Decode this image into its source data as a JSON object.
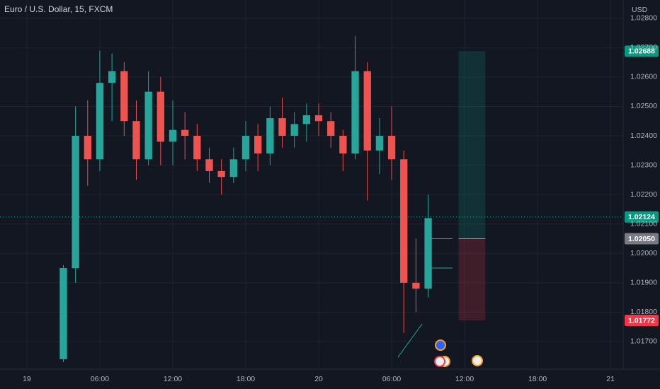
{
  "chart_data": {
    "type": "candlestick",
    "title": "Euro / U.S. Dollar, 15, FXCM",
    "y_unit": "USD",
    "x": [
      3,
      4,
      5,
      6,
      7,
      8,
      9,
      10,
      11,
      12,
      13,
      14,
      15,
      16,
      17,
      18,
      19,
      20,
      21,
      22,
      23,
      24,
      25,
      26,
      27,
      28,
      29,
      30,
      31,
      32,
      33
    ],
    "open": [
      1.0164,
      1.0195,
      1.024,
      1.0232,
      1.0258,
      1.0262,
      1.0245,
      1.0232,
      1.0255,
      1.0238,
      1.0242,
      1.024,
      1.0232,
      1.0228,
      1.0226,
      1.0232,
      1.024,
      1.0234,
      1.0246,
      1.024,
      1.0244,
      1.0247,
      1.0245,
      1.024,
      1.0234,
      1.0262,
      1.0235,
      1.024,
      1.0232,
      1.019,
      1.0188
    ],
    "high": [
      1.0196,
      1.025,
      1.0252,
      1.0269,
      1.0268,
      1.0265,
      1.0252,
      1.0262,
      1.026,
      1.0252,
      1.0248,
      1.0244,
      1.0236,
      1.0232,
      1.0236,
      1.0245,
      1.0244,
      1.025,
      1.0253,
      1.0248,
      1.0251,
      1.0251,
      1.0248,
      1.0242,
      1.0274,
      1.0265,
      1.0246,
      1.025,
      1.0235,
      1.0205,
      1.022
    ],
    "low": [
      1.0163,
      1.019,
      1.0223,
      1.0228,
      1.0245,
      1.024,
      1.0225,
      1.023,
      1.023,
      1.023,
      1.0232,
      1.0228,
      1.0224,
      1.022,
      1.0224,
      1.0228,
      1.0228,
      1.023,
      1.0236,
      1.0236,
      1.0238,
      1.024,
      1.0236,
      1.0228,
      1.0232,
      1.0218,
      1.0227,
      1.0225,
      1.0173,
      1.018,
      1.0185
    ],
    "close": [
      1.0195,
      1.024,
      1.0232,
      1.0258,
      1.0262,
      1.0245,
      1.0232,
      1.0255,
      1.0238,
      1.0242,
      1.024,
      1.0232,
      1.0228,
      1.0226,
      1.0232,
      1.024,
      1.0234,
      1.0246,
      1.024,
      1.0244,
      1.0247,
      1.0245,
      1.024,
      1.0234,
      1.0262,
      1.0235,
      1.024,
      1.0232,
      1.019,
      1.0188,
      1.0212
    ],
    "up_color": "#26a69a",
    "down_color": "#ef5350",
    "xlim": [
      -2.21,
      49.04
    ],
    "xticks": [
      {
        "value": 0,
        "label": "19"
      },
      {
        "value": 6,
        "label": "06:00"
      },
      {
        "value": 12,
        "label": "12:00"
      },
      {
        "value": 18,
        "label": "18:00"
      },
      {
        "value": 24,
        "label": "20"
      },
      {
        "value": 30,
        "label": "06:00"
      },
      {
        "value": 36,
        "label": "12:00"
      },
      {
        "value": 42,
        "label": "18:00"
      },
      {
        "value": 48,
        "label": "21"
      }
    ],
    "ylim": [
      1.01606,
      1.02862
    ],
    "yticks": [
      {
        "value": 1.017,
        "label": "1.01700"
      },
      {
        "value": 1.018,
        "label": "1.01800"
      },
      {
        "value": 1.019,
        "label": "1.01900"
      },
      {
        "value": 1.02,
        "label": "1.02000"
      },
      {
        "value": 1.021,
        "label": "1.02100"
      },
      {
        "value": 1.022,
        "label": "1.02200"
      },
      {
        "value": 1.023,
        "label": "1.02300"
      },
      {
        "value": 1.024,
        "label": "1.02400"
      },
      {
        "value": 1.025,
        "label": "1.02500"
      },
      {
        "value": 1.026,
        "label": "1.02600"
      },
      {
        "value": 1.027,
        "label": "1.02700"
      },
      {
        "value": 1.028,
        "label": "1.02800"
      }
    ],
    "grid": true,
    "last_price": 1.02124,
    "levels": [
      {
        "x": [
          33,
          35
        ],
        "value": 1.0205
      },
      {
        "x": [
          33,
          35
        ],
        "value": 1.0195
      }
    ],
    "position": {
      "x": [
        35.5,
        37.7
      ],
      "target": 1.02688,
      "entry": 1.0205,
      "stop": 1.01772
    },
    "price_tags": [
      {
        "value": 1.02688,
        "label": "1.02688",
        "color": "#089981"
      },
      {
        "value": 1.02124,
        "label": "1.02124",
        "color": "#089981"
      },
      {
        "value": 1.0205,
        "label": "1.02050",
        "color": "#787b86"
      },
      {
        "value": 1.01772,
        "label": "1.01772",
        "color": "#f23645"
      }
    ]
  }
}
